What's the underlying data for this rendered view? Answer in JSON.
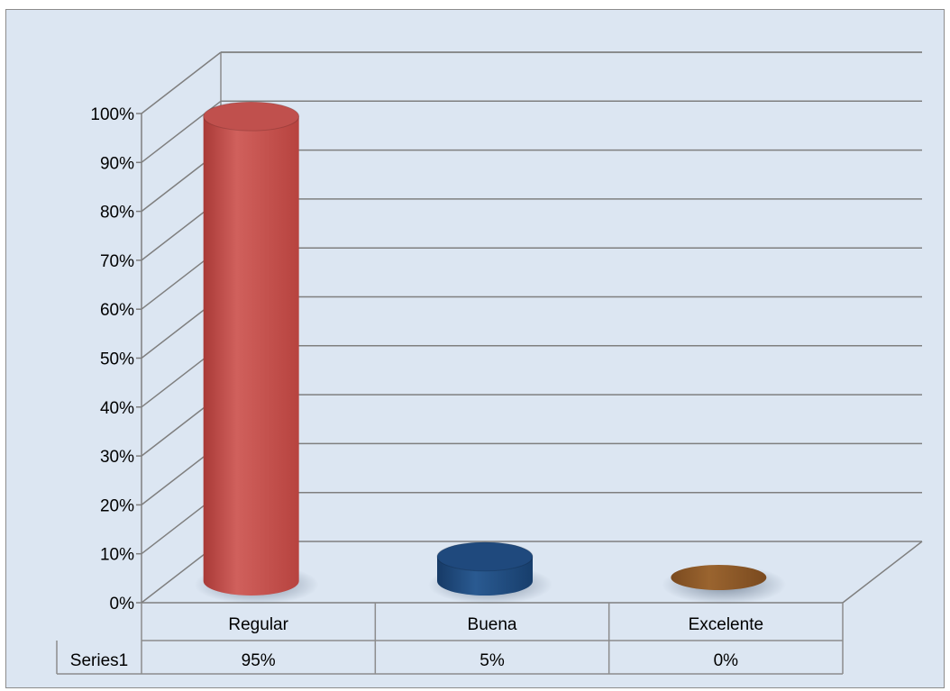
{
  "chart_data": {
    "type": "bar",
    "title": "",
    "xlabel": "",
    "ylabel": "",
    "categories": [
      "Regular",
      "Buena",
      "Excelente"
    ],
    "series": [
      {
        "name": "Series1",
        "values": [
          95,
          5,
          0
        ],
        "labels": [
          "95%",
          "5%",
          "0%"
        ]
      }
    ],
    "ylim": [
      0,
      100
    ],
    "y_ticks": [
      "0%",
      "10%",
      "20%",
      "30%",
      "40%",
      "50%",
      "60%",
      "70%",
      "80%",
      "90%",
      "100%"
    ],
    "grid": true,
    "legend": "data-table",
    "colors": [
      "#c0504d",
      "#1f497d",
      "#8b5a2b"
    ]
  }
}
